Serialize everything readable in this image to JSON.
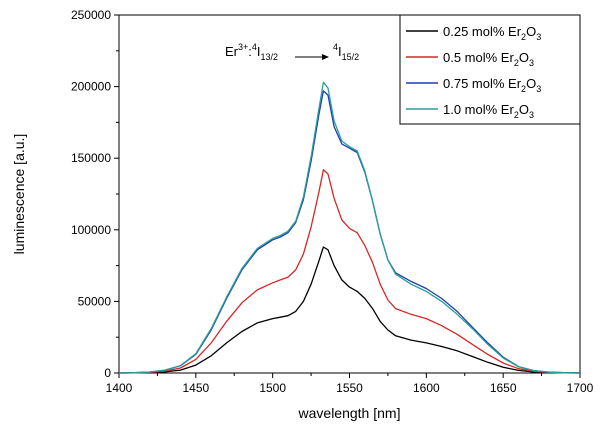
{
  "chart_data": {
    "type": "line",
    "title": "",
    "xlabel": "wavelength [nm]",
    "ylabel": "luminescence [a.u.]",
    "xlim": [
      1400,
      1700
    ],
    "ylim": [
      0,
      250000
    ],
    "x_ticks": [
      1400,
      1450,
      1500,
      1550,
      1600,
      1650,
      1700
    ],
    "y_ticks": [
      0,
      50000,
      100000,
      150000,
      200000,
      250000
    ],
    "grid": false,
    "legend_position": "top-right",
    "annotation": {
      "base": "Er",
      "base_sup": "3+",
      "sep": ":",
      "from_sup": "4",
      "from_main": "I",
      "from_sub": "13/2",
      "to_sup": "4",
      "to_main": "I",
      "to_sub": "15/2"
    },
    "x": [
      1400,
      1410,
      1420,
      1430,
      1440,
      1450,
      1460,
      1470,
      1480,
      1490,
      1500,
      1505,
      1510,
      1515,
      1520,
      1525,
      1530,
      1533,
      1536,
      1540,
      1545,
      1550,
      1555,
      1560,
      1565,
      1570,
      1575,
      1580,
      1590,
      1600,
      1610,
      1620,
      1630,
      1640,
      1650,
      1660,
      1670,
      1680,
      1690,
      1700
    ],
    "series": [
      {
        "name_main": "0.25 mol% Er",
        "name_sub1": "2",
        "name_mid": "O",
        "name_sub2": "3",
        "color": "#000000",
        "values": [
          0,
          100,
          300,
          800,
          2000,
          5500,
          12000,
          21000,
          29000,
          35000,
          38000,
          39000,
          40000,
          43000,
          50000,
          62000,
          78000,
          88000,
          86000,
          75000,
          65000,
          60000,
          57000,
          52000,
          45000,
          36000,
          30000,
          26000,
          23000,
          21000,
          18500,
          15500,
          11500,
          7500,
          4000,
          1800,
          700,
          300,
          100,
          0
        ]
      },
      {
        "name_main": "0.5 mol% Er",
        "name_sub1": "2",
        "name_mid": "O",
        "name_sub2": "3",
        "color": "#d62728",
        "values": [
          0,
          150,
          500,
          1300,
          3500,
          9500,
          21000,
          36000,
          49000,
          58000,
          63000,
          65000,
          67000,
          72000,
          83000,
          102000,
          126000,
          142000,
          139000,
          122000,
          107000,
          101000,
          98000,
          89000,
          77000,
          62000,
          51000,
          45000,
          41000,
          38000,
          33000,
          27000,
          20000,
          13000,
          7000,
          3000,
          1200,
          500,
          150,
          0
        ]
      },
      {
        "name_main": "0.75 mol% Er",
        "name_sub1": "2",
        "name_mid": "O",
        "name_sub2": "3",
        "color": "#1f3fae",
        "values": [
          0,
          200,
          700,
          2000,
          5000,
          13000,
          30000,
          52000,
          72000,
          86000,
          93000,
          95000,
          98000,
          105000,
          121000,
          148000,
          180000,
          197000,
          194000,
          172000,
          160000,
          157000,
          154000,
          140000,
          120000,
          97000,
          79000,
          70000,
          64000,
          59000,
          52000,
          43000,
          32000,
          21000,
          11000,
          4500,
          1700,
          600,
          200,
          0
        ]
      },
      {
        "name_main": "1.0 mol% Er",
        "name_sub1": "2",
        "name_mid": "O",
        "name_sub2": "3",
        "color": "#2a9d9c",
        "values": [
          0,
          200,
          700,
          2000,
          5200,
          13500,
          31000,
          53000,
          73000,
          87000,
          94000,
          96000,
          99000,
          106000,
          123000,
          151000,
          184000,
          203000,
          199000,
          176000,
          162000,
          158000,
          155000,
          141000,
          120000,
          97000,
          79000,
          69000,
          62000,
          57000,
          50000,
          41000,
          31000,
          20000,
          10500,
          4300,
          1600,
          550,
          180,
          0
        ]
      }
    ]
  }
}
